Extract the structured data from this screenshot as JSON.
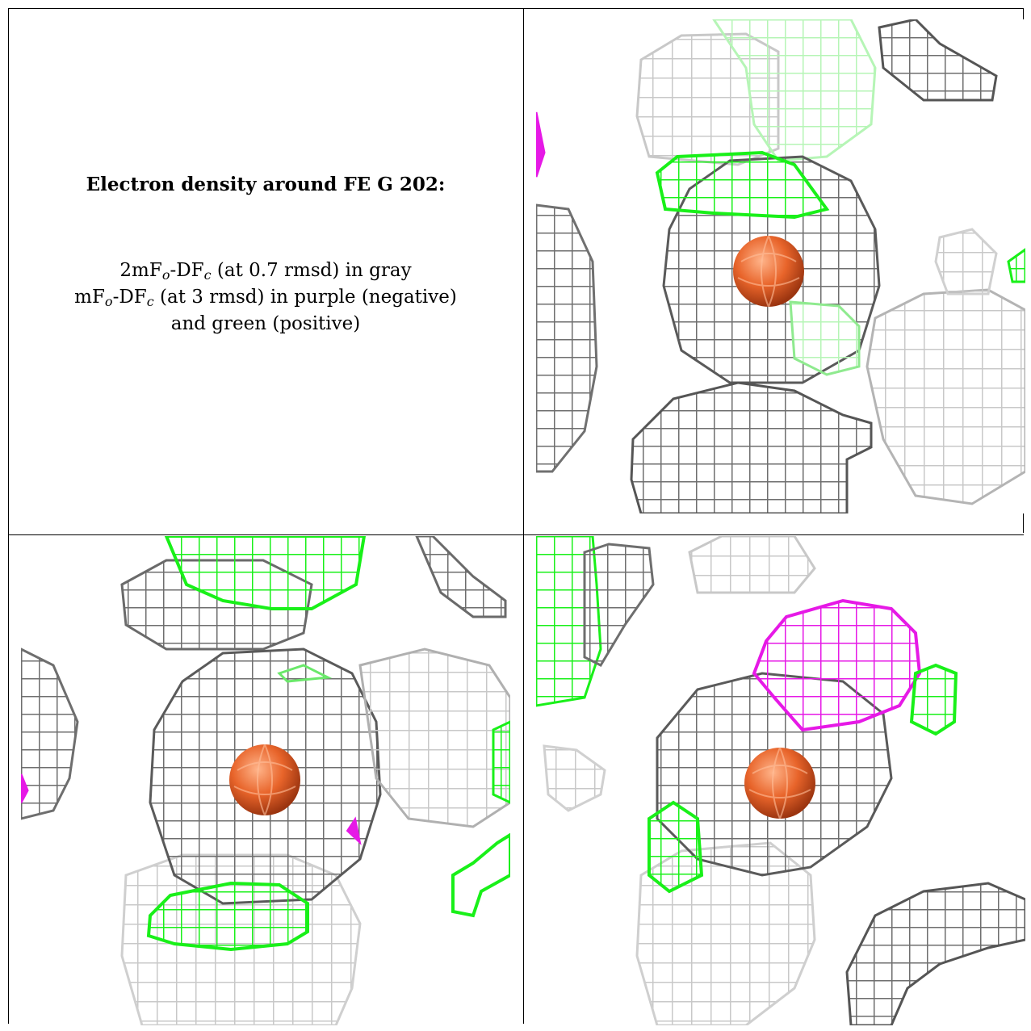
{
  "legend": {
    "title": "Electron density around FE G 202:",
    "line1": {
      "a": "2mF",
      "s1": "o",
      "b": "-DF",
      "s2": "c",
      "c": " (at 0.7 rmsd) in gray"
    },
    "line2": {
      "a": "mF",
      "s1": "o",
      "b": "-DF",
      "s2": "c",
      "c": " (at 3 rmsd) in purple (negative)"
    },
    "line3": "and green (positive)"
  },
  "colors": {
    "gray_mesh": "#6e6e6e",
    "light_mesh": "#c8c8c8",
    "positive": "#19f019",
    "negative": "#e619e6",
    "atom": "#e8642a"
  },
  "icons": [
    "fe-atom-sphere"
  ]
}
